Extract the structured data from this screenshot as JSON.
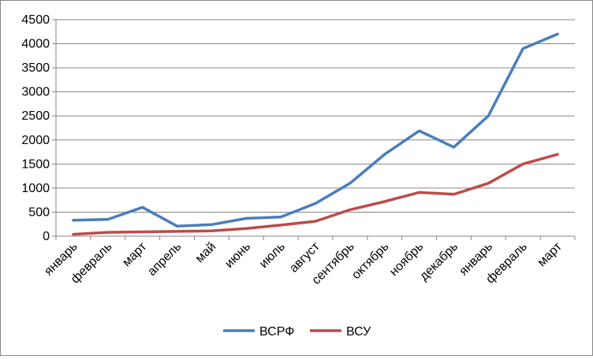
{
  "chart_data": {
    "type": "line",
    "categories": [
      "январь",
      "февраль",
      "март",
      "апрель",
      "май",
      "июнь",
      "июль",
      "август",
      "сентябрь",
      "октябрь",
      "ноябрь",
      "декабрь",
      "январь",
      "февраль",
      "март"
    ],
    "series": [
      {
        "name": "ВСРФ",
        "color": "#4a7ebb",
        "values": [
          330,
          350,
          600,
          210,
          240,
          370,
          400,
          680,
          1100,
          1700,
          2190,
          1850,
          2500,
          3900,
          4200
        ]
      },
      {
        "name": "ВСУ",
        "color": "#be4b48",
        "values": [
          40,
          80,
          90,
          100,
          110,
          160,
          230,
          310,
          550,
          720,
          910,
          870,
          1100,
          1500,
          1700
        ]
      }
    ],
    "ylim": [
      0,
      4500
    ],
    "yticks": [
      0,
      500,
      1000,
      1500,
      2000,
      2500,
      3000,
      3500,
      4000,
      4500
    ],
    "grid": true,
    "legend": "bottom",
    "title": "",
    "xlabel": "",
    "ylabel": ""
  }
}
